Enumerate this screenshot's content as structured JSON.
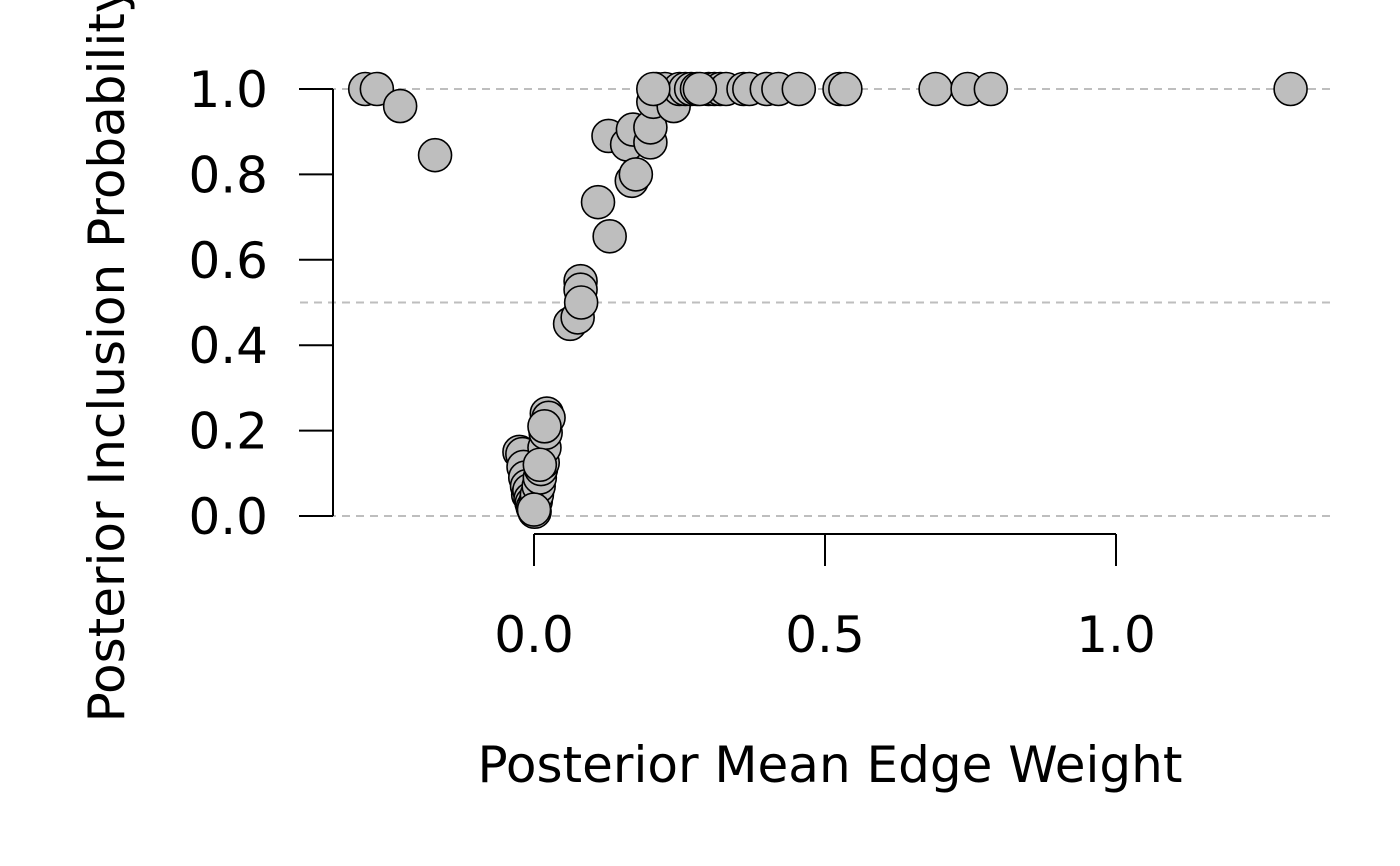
{
  "chart_data": {
    "type": "scatter",
    "title": "",
    "xlabel": "Posterior Mean Edge Weight",
    "ylabel": "Posterior Inclusion Probability",
    "xlim": [
      -0.35,
      1.4
    ],
    "ylim": [
      0,
      1
    ],
    "xticks": [
      "0.0",
      "0.5",
      "1.0"
    ],
    "xtick_values": [
      0.0,
      0.5,
      1.0
    ],
    "yticks": [
      "0.0",
      "0.2",
      "0.4",
      "0.6",
      "0.8",
      "1.0"
    ],
    "ytick_values": [
      0.0,
      0.2,
      0.4,
      0.6,
      0.8,
      1.0
    ],
    "reference_lines_y": [
      0.0,
      0.5,
      1.0
    ],
    "marker_fill": "#bebebe",
    "marker_edge": "#000000",
    "reference_line_color": "#bebebe",
    "grid": false,
    "legend": "none",
    "series": [
      {
        "points": [
          {
            "x": -0.29,
            "y": 1.0
          },
          {
            "x": -0.27,
            "y": 1.0
          },
          {
            "x": -0.23,
            "y": 0.96
          },
          {
            "x": -0.17,
            "y": 0.845
          },
          {
            "x": -0.025,
            "y": 0.15
          },
          {
            "x": -0.02,
            "y": 0.145
          },
          {
            "x": -0.018,
            "y": 0.115
          },
          {
            "x": -0.015,
            "y": 0.09
          },
          {
            "x": -0.012,
            "y": 0.07
          },
          {
            "x": -0.01,
            "y": 0.05
          },
          {
            "x": -0.008,
            "y": 0.06
          },
          {
            "x": -0.006,
            "y": 0.04
          },
          {
            "x": -0.004,
            "y": 0.03
          },
          {
            "x": -0.002,
            "y": 0.02
          },
          {
            "x": 0.0,
            "y": 0.015
          },
          {
            "x": 0.001,
            "y": 0.01
          },
          {
            "x": 0.003,
            "y": 0.035
          },
          {
            "x": 0.005,
            "y": 0.05
          },
          {
            "x": 0.008,
            "y": 0.07
          },
          {
            "x": 0.01,
            "y": 0.09
          },
          {
            "x": 0.012,
            "y": 0.11
          },
          {
            "x": 0.015,
            "y": 0.125
          },
          {
            "x": 0.018,
            "y": 0.16
          },
          {
            "x": 0.02,
            "y": 0.195
          },
          {
            "x": 0.022,
            "y": 0.24
          },
          {
            "x": 0.025,
            "y": 0.23
          },
          {
            "x": 0.018,
            "y": 0.21
          },
          {
            "x": 0.01,
            "y": 0.12
          },
          {
            "x": 0.0,
            "y": 0.015
          },
          {
            "x": 0.062,
            "y": 0.45
          },
          {
            "x": 0.075,
            "y": 0.465
          },
          {
            "x": 0.08,
            "y": 0.55
          },
          {
            "x": 0.08,
            "y": 0.53
          },
          {
            "x": 0.081,
            "y": 0.5
          },
          {
            "x": 0.11,
            "y": 0.735
          },
          {
            "x": 0.13,
            "y": 0.655
          },
          {
            "x": 0.128,
            "y": 0.89
          },
          {
            "x": 0.16,
            "y": 0.87
          },
          {
            "x": 0.168,
            "y": 0.785
          },
          {
            "x": 0.17,
            "y": 0.905
          },
          {
            "x": 0.175,
            "y": 0.8
          },
          {
            "x": 0.2,
            "y": 0.875
          },
          {
            "x": 0.2,
            "y": 0.91
          },
          {
            "x": 0.205,
            "y": 0.97
          },
          {
            "x": 0.21,
            "y": 1.0
          },
          {
            "x": 0.225,
            "y": 1.0
          },
          {
            "x": 0.24,
            "y": 0.96
          },
          {
            "x": 0.25,
            "y": 1.0
          },
          {
            "x": 0.26,
            "y": 1.0
          },
          {
            "x": 0.27,
            "y": 1.0
          },
          {
            "x": 0.28,
            "y": 1.0
          },
          {
            "x": 0.3,
            "y": 1.0
          },
          {
            "x": 0.31,
            "y": 1.0
          },
          {
            "x": 0.32,
            "y": 1.0
          },
          {
            "x": 0.33,
            "y": 1.0
          },
          {
            "x": 0.36,
            "y": 1.0
          },
          {
            "x": 0.37,
            "y": 1.0
          },
          {
            "x": 0.4,
            "y": 1.0
          },
          {
            "x": 0.42,
            "y": 1.0
          },
          {
            "x": 0.455,
            "y": 1.0
          },
          {
            "x": 0.525,
            "y": 1.0
          },
          {
            "x": 0.535,
            "y": 1.0
          },
          {
            "x": 0.69,
            "y": 1.0
          },
          {
            "x": 0.745,
            "y": 1.0
          },
          {
            "x": 0.785,
            "y": 1.0
          },
          {
            "x": 1.3,
            "y": 1.0
          },
          {
            "x": 0.285,
            "y": 1.0
          },
          {
            "x": 0.205,
            "y": 1.0
          }
        ]
      }
    ]
  }
}
